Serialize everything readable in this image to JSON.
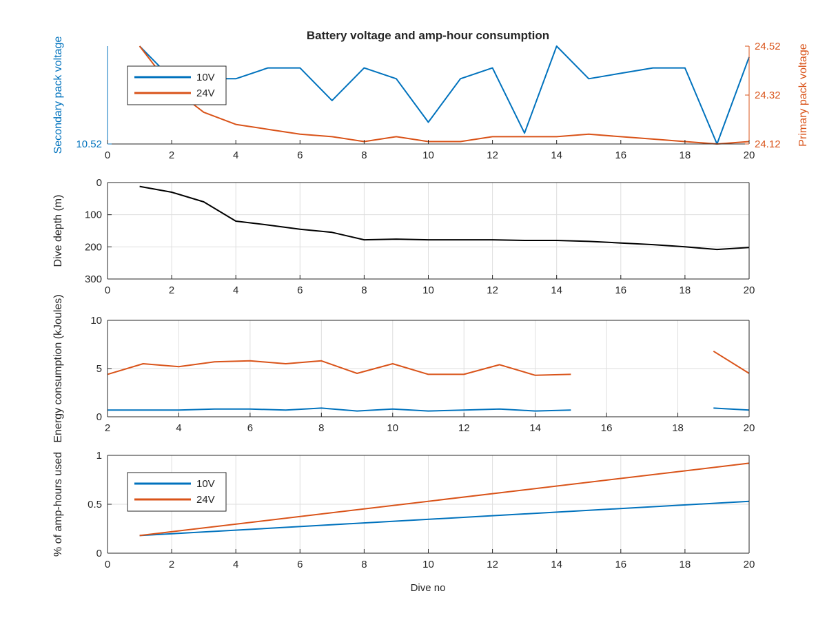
{
  "figure": {
    "title": "Battery voltage and amp-hour consumption",
    "xlabel": "Dive no"
  },
  "chart_data": [
    {
      "type": "line",
      "title": "Battery voltage and amp-hour consumption",
      "xlabel": "",
      "xlim": [
        0,
        20
      ],
      "xticks": [
        0,
        2,
        4,
        6,
        8,
        10,
        12,
        14,
        16,
        18,
        20
      ],
      "ylabel_left": "Secondary pack voltage",
      "ylabel_right": "Primary pack voltage",
      "ylim_left": [
        10.52,
        10.7
      ],
      "yticks_left": [
        "10.52"
      ],
      "ylim_right": [
        24.12,
        24.52
      ],
      "yticks_right": [
        "24.12",
        "24.32",
        "24.52"
      ],
      "grid": false,
      "legend": {
        "location": "upper-left",
        "entries": [
          "10V",
          "24V"
        ]
      },
      "series": [
        {
          "name": "10V",
          "axis": "left",
          "color": "#0072BD",
          "x": [
            1,
            2,
            3,
            4,
            5,
            6,
            7,
            8,
            9,
            10,
            11,
            12,
            13,
            14,
            15,
            16,
            17,
            18,
            19,
            20
          ],
          "y": [
            10.7,
            10.64,
            10.64,
            10.64,
            10.66,
            10.66,
            10.6,
            10.66,
            10.64,
            10.56,
            10.64,
            10.66,
            10.54,
            10.7,
            10.64,
            10.65,
            10.66,
            10.66,
            10.52,
            10.68
          ]
        },
        {
          "name": "24V",
          "axis": "right",
          "color": "#D95319",
          "x": [
            1,
            2,
            3,
            4,
            5,
            6,
            7,
            8,
            9,
            10,
            11,
            12,
            13,
            14,
            15,
            16,
            17,
            18,
            19,
            20
          ],
          "y": [
            24.52,
            24.35,
            24.25,
            24.2,
            24.18,
            24.16,
            24.15,
            24.13,
            24.15,
            24.13,
            24.13,
            24.15,
            24.15,
            24.15,
            24.16,
            24.15,
            24.14,
            24.13,
            24.12,
            24.13
          ]
        }
      ]
    },
    {
      "type": "line",
      "xlabel": "",
      "ylabel": "Dive depth (m)",
      "xlim": [
        0,
        20
      ],
      "xticks": [
        0,
        2,
        4,
        6,
        8,
        10,
        12,
        14,
        16,
        18,
        20
      ],
      "ylim": [
        0,
        300
      ],
      "yticks": [
        0,
        100,
        200,
        300
      ],
      "y_reversed": true,
      "grid": true,
      "series": [
        {
          "color": "#000000",
          "x": [
            1,
            2,
            3,
            4,
            5,
            6,
            7,
            8,
            9,
            10,
            11,
            12,
            13,
            14,
            15,
            16,
            17,
            18,
            19,
            20
          ],
          "y": [
            12,
            30,
            60,
            120,
            132,
            145,
            155,
            178,
            176,
            178,
            178,
            178,
            180,
            180,
            183,
            188,
            193,
            200,
            208,
            202
          ]
        }
      ]
    },
    {
      "type": "line",
      "xlabel": "",
      "ylabel": "Energy consumption (kJoules)",
      "xlim": [
        2,
        20
      ],
      "xticks": [
        2,
        4,
        6,
        8,
        10,
        12,
        14,
        16,
        18,
        20
      ],
      "ylim": [
        0,
        10
      ],
      "yticks": [
        0,
        5,
        10
      ],
      "grid": true,
      "series": [
        {
          "color": "#D95319",
          "segments": [
            {
              "x": [
                2,
                3,
                4,
                5,
                6,
                7,
                8,
                9,
                10,
                11,
                12,
                13,
                14,
                15
              ],
              "y": [
                4.4,
                5.5,
                5.2,
                5.7,
                5.8,
                5.5,
                5.8,
                4.5,
                5.5,
                4.4,
                4.4,
                5.4,
                4.3,
                4.4
              ]
            },
            {
              "x": [
                19,
                20
              ],
              "y": [
                6.8,
                4.5
              ]
            }
          ]
        },
        {
          "color": "#0072BD",
          "segments": [
            {
              "x": [
                2,
                3,
                4,
                5,
                6,
                7,
                8,
                9,
                10,
                11,
                12,
                13,
                14,
                15
              ],
              "y": [
                0.7,
                0.7,
                0.7,
                0.8,
                0.8,
                0.7,
                0.9,
                0.6,
                0.8,
                0.6,
                0.7,
                0.8,
                0.6,
                0.7
              ]
            },
            {
              "x": [
                19,
                20
              ],
              "y": [
                0.9,
                0.7
              ]
            }
          ]
        }
      ]
    },
    {
      "type": "line",
      "xlabel": "Dive no",
      "ylabel": "% of amp-hours used",
      "xlim": [
        0,
        20
      ],
      "xticks": [
        0,
        2,
        4,
        6,
        8,
        10,
        12,
        14,
        16,
        18,
        20
      ],
      "ylim": [
        0,
        1
      ],
      "yticks": [
        "0",
        "0.5",
        "1"
      ],
      "grid": true,
      "legend": {
        "location": "upper-left",
        "entries": [
          "10V",
          "24V"
        ]
      },
      "series": [
        {
          "name": "10V",
          "color": "#0072BD",
          "x": [
            1,
            20
          ],
          "y": [
            0.18,
            0.53
          ]
        },
        {
          "name": "24V",
          "color": "#D95319",
          "x": [
            1,
            20
          ],
          "y": [
            0.18,
            0.92
          ]
        }
      ]
    }
  ]
}
